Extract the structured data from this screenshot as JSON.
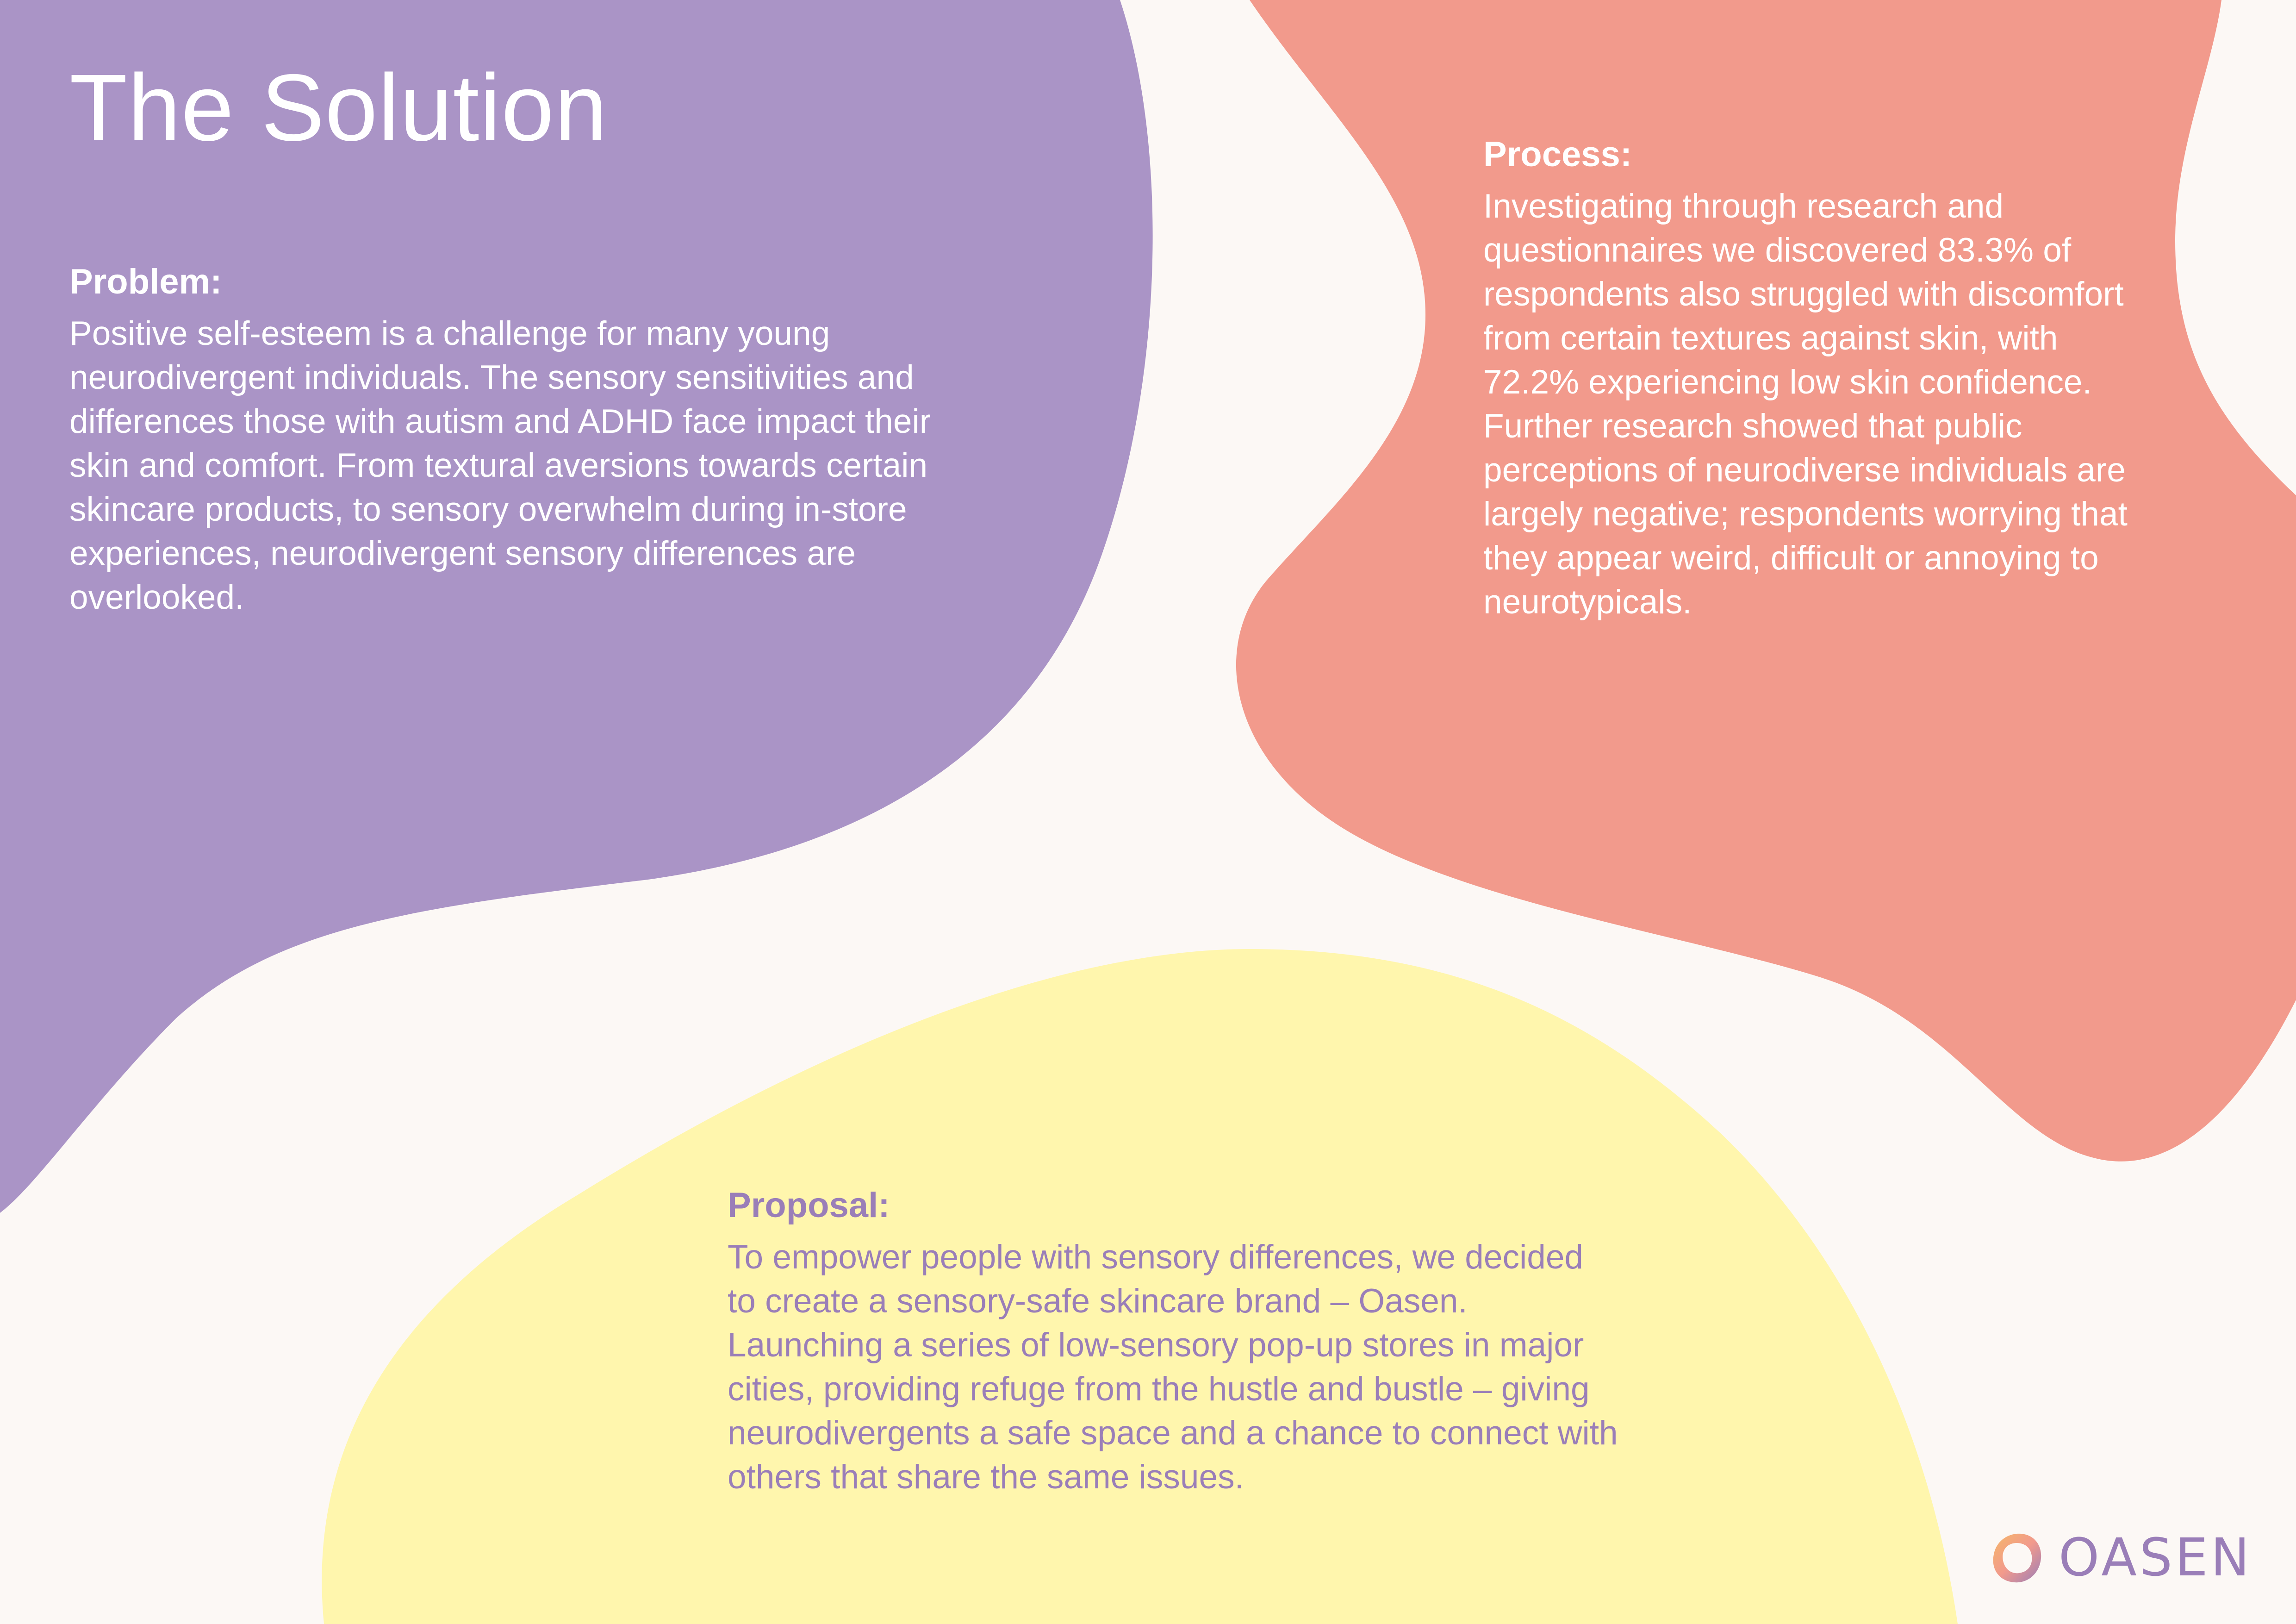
{
  "page": {
    "title": "The Solution",
    "colors": {
      "background": "#FCF8F5",
      "purple_blob": "#AA94C6",
      "coral_blob": "#F29A8C",
      "yellow_blob": "#FFF6AD",
      "accent_text": "#9A7EB8"
    }
  },
  "problem": {
    "heading": "Problem:",
    "body": "Positive self-esteem is a challenge for many young neurodivergent individuals. The sensory sensitivities and differences those with autism and ADHD face impact their skin and comfort. From textural aversions towards certain skincare products, to sensory overwhelm during in-store experiences, neurodivergent sensory differences are overlooked."
  },
  "process": {
    "heading": "Process:",
    "body": "Investigating through research and questionnaires we discovered 83.3% of respondents also struggled with discomfort from certain textures against skin, with 72.2% experiencing low skin confidence. Further research showed that public perceptions of neurodiverse individuals are largely negative; respondents worrying that they appear weird, difficult or annoying to neurotypicals."
  },
  "proposal": {
    "heading": "Proposal:",
    "body": "To empower people with sensory differences, we decided to create a sensory-safe skincare brand – Oasen. Launching a series of low-sensory pop-up stores in major cities, providing refuge from the hustle and bustle – giving neurodivergents a safe space and a chance to connect with others that share the same issues."
  },
  "logo": {
    "icon": "oasen-logo-icon",
    "text": "OASEN"
  }
}
